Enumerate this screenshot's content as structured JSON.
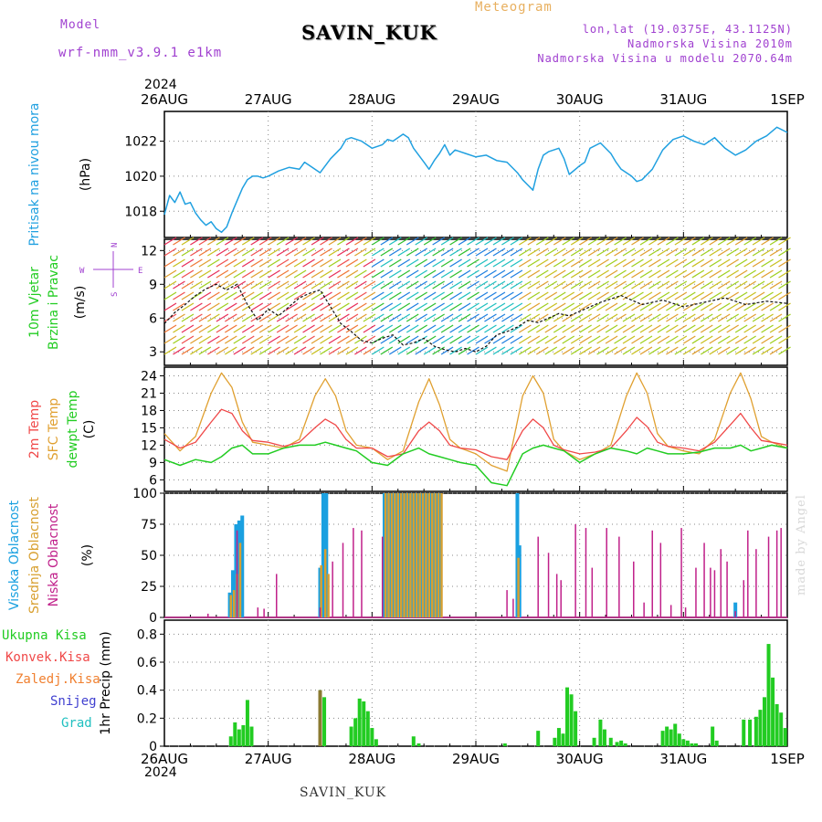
{
  "header": {
    "model_label": "Model",
    "model_name": "wrf-nmm_v3.9.1 e1km",
    "station": "SAVIN_KUK",
    "product": "Meteogram",
    "lonlat": "lon,lat (19.0375E, 43.1125N)",
    "elevation": "Nadmorska Visina 2010m",
    "model_elevation": "Nadmorska Visina u modelu 2070.64m",
    "credit": "made by Angel",
    "footer_station": "SAVIN_KUK",
    "year_top": "2024",
    "year_bottom": "2024"
  },
  "colors": {
    "pressure": "#20a0e0",
    "wind_label": "#22cc22",
    "temp_2m": "#f04848",
    "temp_sfc": "#e0a030",
    "dewpt": "#22cc22",
    "cloud_high": "#1aa0e0",
    "cloud_mid": "#d8a030",
    "cloud_low": "#c0208a",
    "precip_total": "#22cc22",
    "precip_conv": "#f04848",
    "precip_frz": "#f08030",
    "snow": "#4040d0",
    "hail": "#20c0c0",
    "header_purple": "#a040d0",
    "header_orange": "#e8b060",
    "compass": "#a040d0"
  },
  "chart_data": [
    {
      "type": "line",
      "name": "pressure",
      "ylabel_lines": [
        "Pritisak na nivou mora",
        "(hPa)"
      ],
      "x_ticks": [
        "26AUG",
        "27AUG",
        "28AUG",
        "29AUG",
        "30AUG",
        "31AUG",
        "1SEP"
      ],
      "ylim": [
        1016.5,
        1023.7
      ],
      "yticks": [
        1018,
        1020,
        1022
      ],
      "grid": true,
      "series": [
        {
          "x": [
            0,
            0.05,
            0.1,
            0.15,
            0.2,
            0.25,
            0.3,
            0.35,
            0.4,
            0.45,
            0.5,
            0.55,
            0.6,
            0.65,
            0.7,
            0.75,
            0.8,
            0.85,
            0.9,
            0.95,
            1.0,
            1.1,
            1.2,
            1.3,
            1.35,
            1.4,
            1.5,
            1.6,
            1.7,
            1.75,
            1.8,
            1.9,
            2.0,
            2.1,
            2.15,
            2.2,
            2.3,
            2.35,
            2.4,
            2.5,
            2.55,
            2.6,
            2.65,
            2.7,
            2.75,
            2.8,
            2.9,
            3.0,
            3.1,
            3.2,
            3.3,
            3.4,
            3.45,
            3.5,
            3.55,
            3.6,
            3.65,
            3.7,
            3.8,
            3.85,
            3.9,
            4.0,
            4.05,
            4.1,
            4.2,
            4.3,
            4.35,
            4.4,
            4.5,
            4.55,
            4.6,
            4.7,
            4.8,
            4.9,
            5.0,
            5.1,
            5.2,
            5.3,
            5.4,
            5.5,
            5.6,
            5.7,
            5.8,
            5.9,
            6.0
          ],
          "values": [
            1017.8,
            1018.9,
            1018.5,
            1019.1,
            1018.4,
            1018.5,
            1017.9,
            1017.5,
            1017.2,
            1017.4,
            1017.0,
            1016.8,
            1017.1,
            1017.9,
            1018.6,
            1019.3,
            1019.8,
            1020.0,
            1020.0,
            1019.9,
            1020.0,
            1020.3,
            1020.5,
            1020.4,
            1020.8,
            1020.6,
            1020.2,
            1021.0,
            1021.6,
            1022.1,
            1022.2,
            1022.0,
            1021.6,
            1021.8,
            1022.1,
            1022.0,
            1022.4,
            1022.2,
            1021.6,
            1020.8,
            1020.4,
            1020.9,
            1021.3,
            1021.8,
            1021.2,
            1021.5,
            1021.3,
            1021.1,
            1021.2,
            1020.9,
            1020.8,
            1020.2,
            1019.8,
            1019.5,
            1019.2,
            1020.4,
            1021.2,
            1021.4,
            1021.6,
            1021.0,
            1020.1,
            1020.6,
            1020.8,
            1021.6,
            1021.9,
            1021.3,
            1020.8,
            1020.4,
            1020.0,
            1019.7,
            1019.8,
            1020.4,
            1021.5,
            1022.1,
            1022.3,
            1022.0,
            1021.8,
            1022.2,
            1021.6,
            1021.2,
            1021.5,
            1022.0,
            1022.3,
            1022.8,
            1022.5
          ]
        }
      ]
    },
    {
      "type": "line",
      "name": "wind",
      "ylabel_lines": [
        "10m Vjetar",
        "Brzina i Pravac",
        "(m/s)"
      ],
      "compass": {
        "n": "N",
        "e": "E",
        "w": "W",
        "s": "S"
      },
      "ylim": [
        1.8,
        13.0
      ],
      "yticks": [
        3,
        6,
        9,
        12
      ],
      "grid": true,
      "series": [
        {
          "name": "wind speed",
          "x": [
            0,
            0.1,
            0.2,
            0.3,
            0.4,
            0.5,
            0.6,
            0.7,
            0.8,
            0.9,
            1.0,
            1.1,
            1.2,
            1.3,
            1.4,
            1.5,
            1.6,
            1.7,
            1.8,
            1.9,
            2.0,
            2.1,
            2.2,
            2.3,
            2.4,
            2.5,
            2.6,
            2.7,
            2.8,
            2.9,
            3.0,
            3.1,
            3.2,
            3.3,
            3.4,
            3.5,
            3.6,
            3.7,
            3.8,
            3.9,
            4.0,
            4.2,
            4.4,
            4.6,
            4.8,
            5.0,
            5.2,
            5.4,
            5.6,
            5.8,
            6.0
          ],
          "values": [
            5.5,
            6.5,
            7.2,
            8.0,
            8.6,
            9.0,
            8.5,
            9.0,
            7.2,
            5.8,
            6.8,
            6.2,
            7.0,
            7.8,
            8.2,
            8.5,
            7.0,
            5.5,
            4.8,
            4.0,
            3.8,
            4.2,
            4.5,
            3.6,
            3.8,
            4.2,
            3.5,
            3.2,
            3.0,
            3.3,
            3.0,
            3.5,
            4.5,
            4.8,
            5.2,
            5.8,
            5.6,
            6.0,
            6.4,
            6.2,
            6.6,
            7.4,
            8.0,
            7.2,
            7.6,
            7.0,
            7.4,
            7.8,
            7.2,
            7.5,
            7.3
          ]
        }
      ]
    },
    {
      "type": "line",
      "name": "temperature",
      "ylabel_lines": [
        "2m Temp",
        "SFC Temp",
        "dewpt Temp",
        "(C)"
      ],
      "ylim": [
        4,
        25.5
      ],
      "yticks": [
        6,
        9,
        12,
        15,
        18,
        21,
        24
      ],
      "grid": true,
      "series": [
        {
          "name": "2m Temp",
          "x": [
            0,
            0.15,
            0.3,
            0.45,
            0.55,
            0.65,
            0.75,
            0.85,
            1.0,
            1.15,
            1.3,
            1.45,
            1.55,
            1.65,
            1.75,
            1.85,
            2.0,
            2.15,
            2.3,
            2.45,
            2.55,
            2.65,
            2.75,
            2.85,
            3.0,
            3.15,
            3.3,
            3.45,
            3.55,
            3.65,
            3.75,
            3.85,
            4.0,
            4.15,
            4.3,
            4.45,
            4.55,
            4.65,
            4.75,
            4.85,
            5.0,
            5.15,
            5.3,
            5.45,
            5.55,
            5.65,
            5.75,
            5.85,
            6.0
          ],
          "values": [
            13,
            11.5,
            12.5,
            16,
            18.2,
            17.5,
            14.5,
            12.8,
            12.5,
            11.8,
            12.5,
            15,
            16.5,
            15.5,
            13,
            11.5,
            11.5,
            10,
            10.5,
            14.5,
            16,
            14.5,
            12,
            11.5,
            11.2,
            10,
            9.5,
            14.5,
            16.5,
            15,
            12,
            11.2,
            10.5,
            10.8,
            11.5,
            14.5,
            16.8,
            15.2,
            12.5,
            11.8,
            11.5,
            11,
            12.5,
            15.5,
            17.5,
            15,
            12.8,
            12.5,
            12
          ]
        },
        {
          "name": "SFC Temp",
          "x": [
            0,
            0.15,
            0.3,
            0.45,
            0.55,
            0.65,
            0.75,
            0.85,
            1.0,
            1.15,
            1.3,
            1.45,
            1.55,
            1.65,
            1.75,
            1.85,
            2.0,
            2.15,
            2.3,
            2.45,
            2.55,
            2.65,
            2.75,
            2.85,
            3.0,
            3.15,
            3.3,
            3.45,
            3.55,
            3.65,
            3.75,
            3.85,
            4.0,
            4.15,
            4.3,
            4.45,
            4.55,
            4.65,
            4.75,
            4.85,
            5.0,
            5.15,
            5.3,
            5.45,
            5.55,
            5.65,
            5.75,
            5.85,
            6.0
          ],
          "values": [
            14,
            11,
            13.5,
            21,
            24.5,
            22,
            16,
            12.5,
            12,
            11.5,
            13,
            20.5,
            23.5,
            20.5,
            14.5,
            12,
            11.5,
            9.5,
            11,
            19.5,
            23.5,
            19,
            13,
            11.5,
            10.5,
            8.5,
            7.5,
            20.5,
            24,
            21,
            13,
            11,
            9.5,
            10.5,
            12,
            20.5,
            24.5,
            21,
            14,
            11.8,
            11,
            10.5,
            13,
            21,
            24.5,
            20,
            13.5,
            12.5,
            11.5
          ]
        },
        {
          "name": "dewpt Temp",
          "x": [
            0,
            0.15,
            0.3,
            0.45,
            0.55,
            0.65,
            0.75,
            0.85,
            1.0,
            1.15,
            1.3,
            1.45,
            1.55,
            1.65,
            1.75,
            1.85,
            2.0,
            2.15,
            2.3,
            2.45,
            2.55,
            2.65,
            2.75,
            2.85,
            3.0,
            3.15,
            3.3,
            3.45,
            3.55,
            3.65,
            3.75,
            3.85,
            4.0,
            4.15,
            4.3,
            4.45,
            4.55,
            4.65,
            4.75,
            4.85,
            5.0,
            5.15,
            5.3,
            5.45,
            5.55,
            5.65,
            5.75,
            5.85,
            6.0
          ],
          "values": [
            9.5,
            8.5,
            9.5,
            9,
            10,
            11.5,
            12,
            10.5,
            10.5,
            11.5,
            12,
            12,
            12.5,
            12,
            11.5,
            11,
            9,
            8.5,
            10.5,
            11.5,
            10.5,
            10,
            9.5,
            9,
            8.5,
            5.5,
            5,
            10.5,
            11.5,
            12,
            11.5,
            11,
            9,
            10.5,
            11.5,
            11,
            10.5,
            11.5,
            11,
            10.5,
            10.5,
            10.8,
            11.5,
            11.5,
            12,
            11,
            11.5,
            12,
            11.5
          ]
        }
      ]
    },
    {
      "type": "bar",
      "name": "cloud cover",
      "ylabel_lines": [
        "Visoka Oblacnost",
        "Srednja Oblacnost",
        "Niska Oblacnost",
        "(%)"
      ],
      "ylim": [
        0,
        100
      ],
      "yticks": [
        0,
        25,
        50,
        75,
        100
      ],
      "grid": true,
      "series": [
        {
          "name": "Visoka Oblacnost",
          "x": [
            0.63,
            0.66,
            0.69,
            0.72,
            0.75,
            1.5,
            1.53,
            1.56,
            2.12,
            2.15,
            2.18,
            2.21,
            2.24,
            2.27,
            2.3,
            2.33,
            2.36,
            2.39,
            2.42,
            2.45,
            2.48,
            2.51,
            2.54,
            2.57,
            2.6,
            2.63,
            2.66,
            3.4,
            3.42,
            5.5
          ],
          "values": [
            20,
            38,
            75,
            78,
            82,
            40,
            100,
            100,
            100,
            100,
            100,
            100,
            100,
            100,
            100,
            100,
            100,
            100,
            100,
            100,
            100,
            100,
            100,
            100,
            100,
            100,
            100,
            100,
            58,
            12
          ]
        },
        {
          "name": "Srednja Oblacnost",
          "x": [
            0.64,
            0.67,
            0.7,
            0.73,
            1.51,
            1.55,
            1.58,
            2.13,
            2.16,
            2.19,
            2.22,
            2.25,
            2.28,
            2.31,
            2.34,
            2.37,
            2.4,
            2.43,
            2.46,
            2.49,
            2.52,
            2.55,
            2.58,
            2.61,
            2.64,
            2.67,
            3.41
          ],
          "values": [
            18,
            22,
            35,
            60,
            42,
            55,
            35,
            100,
            100,
            100,
            100,
            100,
            100,
            100,
            100,
            100,
            100,
            100,
            100,
            100,
            100,
            100,
            100,
            100,
            100,
            100,
            48
          ]
        },
        {
          "name": "Niska Oblacnost",
          "x": [
            0.42,
            0.7,
            0.9,
            0.96,
            1.08,
            1.5,
            1.62,
            1.72,
            1.82,
            1.9,
            2.1,
            3.3,
            3.36,
            3.6,
            3.7,
            3.78,
            3.82,
            3.96,
            4.06,
            4.12,
            4.26,
            4.38,
            4.52,
            4.62,
            4.7,
            4.78,
            4.88,
            4.98,
            5.02,
            5.12,
            5.2,
            5.26,
            5.3,
            5.36,
            5.42,
            5.5,
            5.58,
            5.62,
            5.7,
            5.82,
            5.9,
            5.94
          ],
          "values": [
            3,
            70,
            8,
            7,
            35,
            8,
            45,
            60,
            72,
            70,
            65,
            22,
            15,
            65,
            52,
            35,
            30,
            75,
            72,
            40,
            72,
            65,
            45,
            12,
            70,
            60,
            10,
            72,
            8,
            40,
            60,
            40,
            38,
            55,
            45,
            5,
            30,
            70,
            55,
            65,
            70,
            72
          ]
        }
      ]
    },
    {
      "type": "bar",
      "name": "precipitation",
      "ylabel_lines": [
        "1hr Precip (mm)"
      ],
      "legend": [
        "Ukupna Kisa",
        "Konvek.Kisa",
        "Zaledj.Kisa",
        "Snijeg",
        "Grad"
      ],
      "ylim": [
        0,
        0.9
      ],
      "yticks": [
        0,
        0.2,
        0.4,
        0.6,
        0.8
      ],
      "grid": true,
      "series": [
        {
          "name": "Ukupna Kisa",
          "x": [
            0.64,
            0.68,
            0.72,
            0.76,
            0.8,
            0.84,
            1.5,
            1.54,
            1.8,
            1.84,
            1.88,
            1.92,
            1.96,
            2.0,
            2.04,
            2.4,
            2.45,
            3.28,
            3.6,
            3.76,
            3.8,
            3.84,
            3.88,
            3.92,
            3.96,
            4.14,
            4.2,
            4.24,
            4.3,
            4.36,
            4.4,
            4.44,
            4.8,
            4.84,
            4.88,
            4.92,
            4.96,
            5.0,
            5.04,
            5.08,
            5.12,
            5.28,
            5.32,
            5.58,
            5.64,
            5.7,
            5.74,
            5.78,
            5.82,
            5.86,
            5.9,
            5.94,
            5.98
          ],
          "values": [
            0.07,
            0.17,
            0.12,
            0.15,
            0.33,
            0.14,
            0.4,
            0.35,
            0.14,
            0.2,
            0.34,
            0.32,
            0.25,
            0.13,
            0.05,
            0.07,
            0.02,
            0.02,
            0.11,
            0.06,
            0.13,
            0.09,
            0.42,
            0.37,
            0.25,
            0.06,
            0.19,
            0.12,
            0.06,
            0.03,
            0.04,
            0.02,
            0.11,
            0.14,
            0.12,
            0.16,
            0.09,
            0.05,
            0.04,
            0.02,
            0.02,
            0.14,
            0.04,
            0.19,
            0.19,
            0.21,
            0.26,
            0.35,
            0.73,
            0.49,
            0.3,
            0.24,
            0.13
          ]
        },
        {
          "name": "Konvek.Kisa",
          "x": [],
          "values": []
        },
        {
          "name": "Zaledj.Kisa",
          "x": [
            1.5
          ],
          "values": [
            0.4
          ]
        },
        {
          "name": "Snijeg",
          "x": [],
          "values": []
        },
        {
          "name": "Grad",
          "x": [],
          "values": []
        }
      ]
    }
  ]
}
